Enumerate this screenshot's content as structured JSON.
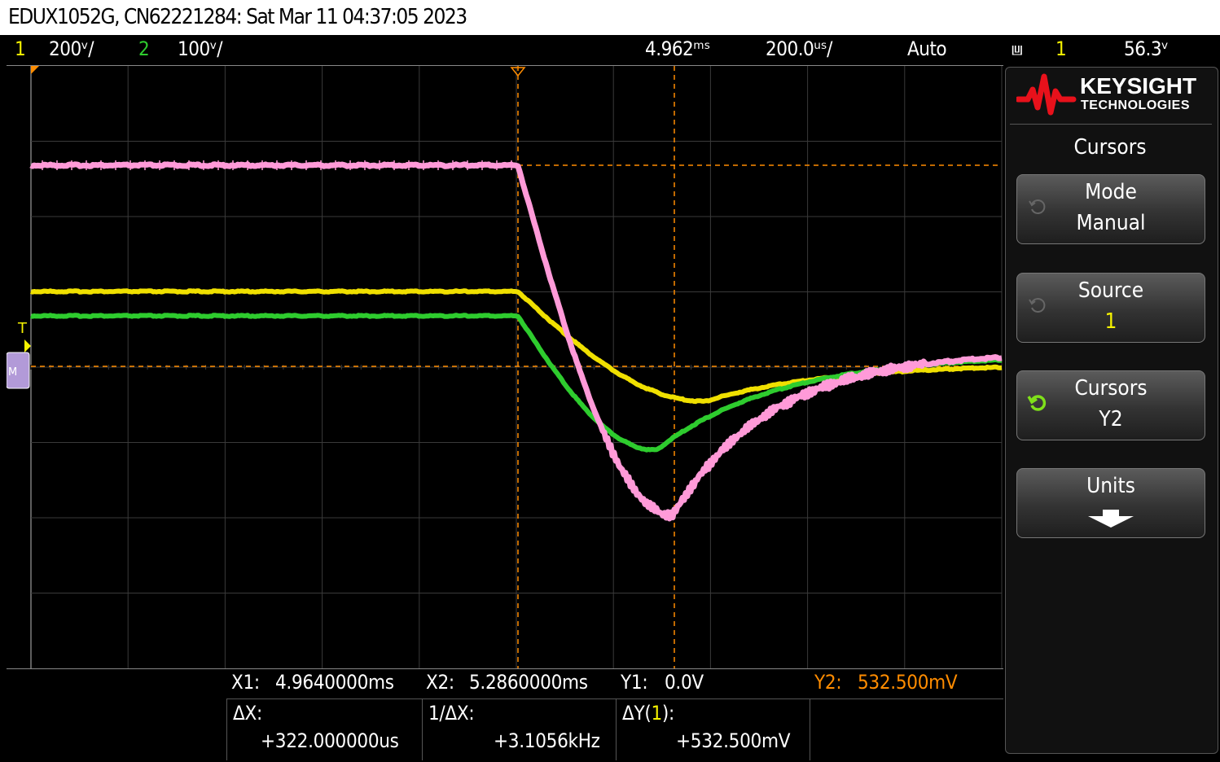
{
  "window": {
    "title": "EDUX1052G, CN62221284: Sat Mar 11 04:37:05 2023"
  },
  "status_bar": {
    "ch1_label": "1",
    "ch1_scale": "200ᵛ/",
    "ch2_label": "2",
    "ch2_scale": "100ᵛ/",
    "time_delay": "4.962ᵐˢ",
    "time_scale": "200.0ᵘˢ/",
    "trigger_mode": "Auto",
    "trigger_icon": "⩏",
    "trigger_source": "1",
    "trigger_level": "56.3ᵛ",
    "colors": {
      "ch1": "#f5f200",
      "ch2": "#2ecc2e",
      "text": "#ffffff"
    }
  },
  "plot": {
    "trigger_marker": "T",
    "cursor_color": "#ff8c00",
    "traces": [
      {
        "name": "1",
        "color": "#f0e000"
      },
      {
        "name": "2",
        "color": "#2ecc2e"
      },
      {
        "name": "M",
        "color": "#ff9ad8"
      }
    ]
  },
  "cursor_readout": {
    "x1_label": "X1:",
    "x1_value": "4.9640000ms",
    "x2_label": "X2:",
    "x2_value": "5.2860000ms",
    "y1_label": "Y1:",
    "y1_value": "0.0V",
    "y2_label": "Y2:",
    "y2_value": "532.500mV",
    "dx_label": "ΔX:",
    "dx_value": "+322.000000us",
    "inv_dx_label": "1/ΔX:",
    "inv_dx_value": "+3.1056kHz",
    "dy_label_pre": "ΔY(",
    "dy_label_ch": "1",
    "dy_label_post": "):",
    "dy_value": "+532.500mV"
  },
  "side_panel": {
    "brand": "KEYSIGHT",
    "brand_sub": "TECHNOLOGIES",
    "menu_title": "Cursors",
    "softkeys": [
      {
        "label": "Mode",
        "value": "Manual",
        "knob": "knob-icon"
      },
      {
        "label": "Source",
        "value": "1",
        "knob": "knob-icon"
      },
      {
        "label": "Cursors",
        "value": "Y2",
        "knob": "knob-active-icon"
      },
      {
        "label": "Units",
        "value": "",
        "knob": "down-arrow-icon"
      }
    ]
  }
}
